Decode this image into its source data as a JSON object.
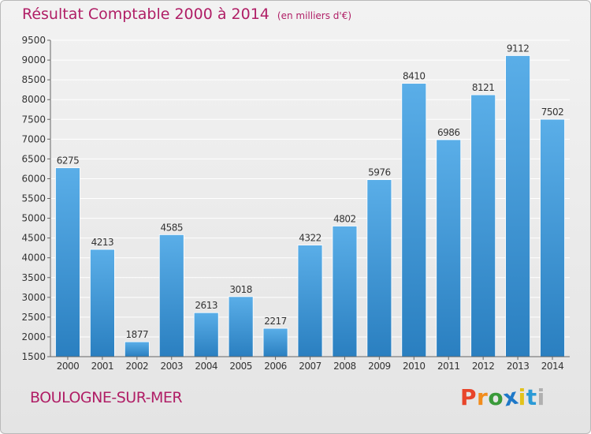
{
  "title": "Résultat Comptable 2000 à 2014",
  "subtitle": "(en milliers d'€)",
  "city": "BOULOGNE-SUR-MER",
  "logo": {
    "letters": [
      "P",
      "r",
      "o",
      "x",
      "i",
      "t",
      "i"
    ],
    "colors": [
      "#e8452a",
      "#f28c1c",
      "#3a9a3a",
      "#1e78c8",
      "#e2c21a",
      "#2a9ad6",
      "#b0b0b0"
    ]
  },
  "colors": {
    "accent": "#b01e66",
    "bar_top": "#5aaee8",
    "bar_bottom": "#2a7fc0",
    "grid": "#ffffff",
    "axis": "#666666"
  },
  "chart_data": {
    "type": "bar",
    "categories": [
      "2000",
      "2001",
      "2002",
      "2003",
      "2004",
      "2005",
      "2006",
      "2007",
      "2008",
      "2009",
      "2010",
      "2011",
      "2012",
      "2013",
      "2014"
    ],
    "values": [
      6275,
      4213,
      1877,
      4585,
      2613,
      3018,
      2217,
      4322,
      4802,
      5976,
      8410,
      6986,
      8121,
      9112,
      7502
    ],
    "ylim": [
      1500,
      9500
    ],
    "yticks": [
      1500,
      2000,
      2500,
      3000,
      3500,
      4000,
      4500,
      5000,
      5500,
      6000,
      6500,
      7000,
      7500,
      8000,
      8500,
      9000,
      9500
    ],
    "grid": true,
    "xlabel": "",
    "ylabel": ""
  }
}
